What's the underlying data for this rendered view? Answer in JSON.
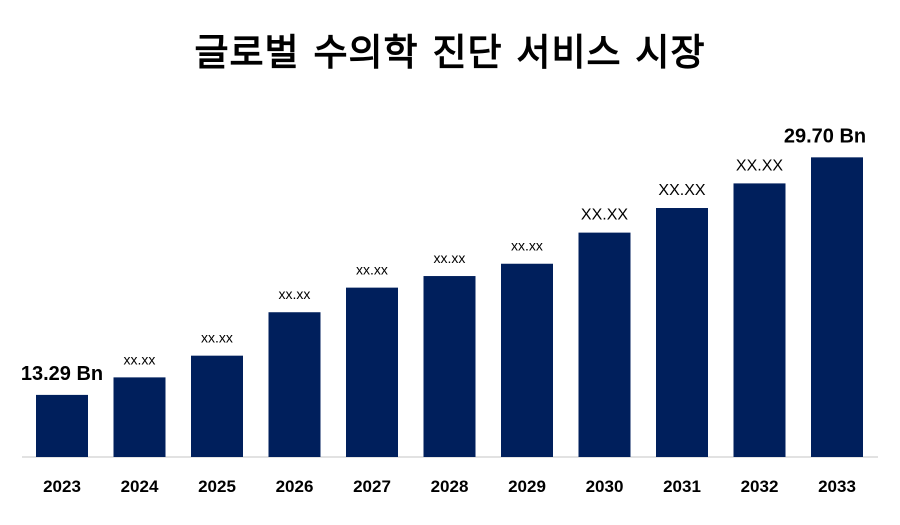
{
  "chart_data": {
    "type": "bar",
    "title": "글로벌 수의학 진단 서비스 시장",
    "categories": [
      "2023",
      "2024",
      "2025",
      "2026",
      "2027",
      "2028",
      "2029",
      "2030",
      "2031",
      "2032",
      "2033"
    ],
    "values": [
      13.29,
      14.5,
      16.0,
      19.0,
      20.7,
      21.5,
      22.35,
      24.5,
      26.2,
      27.9,
      29.7
    ],
    "data_labels": [
      "13.29 Bn",
      "xx.xx",
      "xx.xx",
      "xx.xx",
      "xx.xx",
      "xx.xx",
      "xx.xx",
      "XX.XX",
      "XX.XX",
      "XX.XX",
      "29.70  Bn"
    ],
    "ylim": [
      9,
      30
    ],
    "xlabel": "",
    "ylabel": "",
    "grid": false,
    "legend": "none",
    "bar_color": "#001f5c",
    "axis_color": "#d9d9d9"
  }
}
